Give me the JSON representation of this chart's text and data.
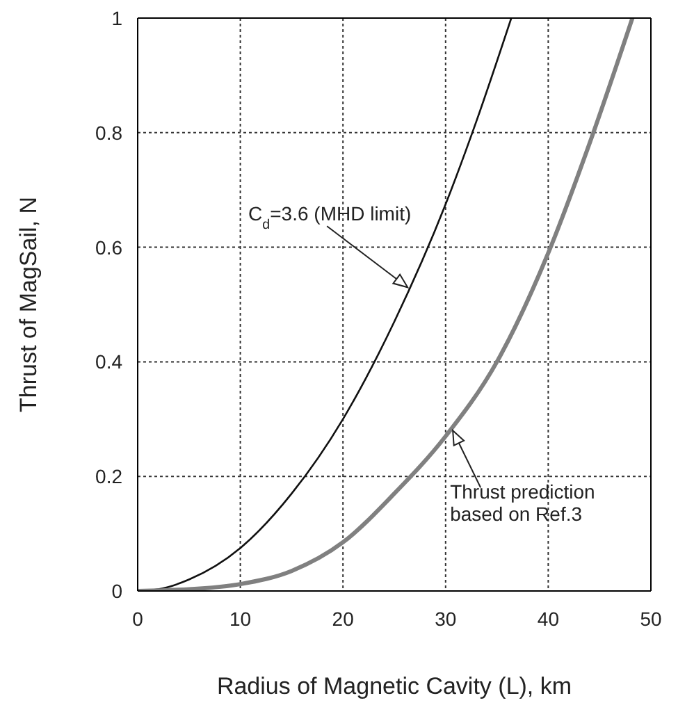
{
  "chart_data": {
    "type": "line",
    "xlabel": "Radius of Magnetic Cavity (L), km",
    "ylabel": "Thrust of MagSail, N",
    "series": [
      {
        "color": "#111111",
        "x": [
          0,
          2,
          5,
          10,
          15,
          20,
          25,
          30,
          33,
          36.4
        ],
        "values": [
          0,
          0.003,
          0.02,
          0.075,
          0.17,
          0.3,
          0.47,
          0.675,
          0.82,
          1
        ]
      },
      {
        "color": "#808080",
        "x": [
          0,
          2,
          5,
          10,
          15,
          20,
          25,
          30,
          35,
          40,
          44,
          48.2
        ],
        "values": [
          0,
          0.001,
          0.003,
          0.012,
          0.035,
          0.085,
          0.17,
          0.27,
          0.4,
          0.59,
          0.78,
          1
        ]
      }
    ],
    "xlim": [
      0,
      50
    ],
    "ylim": [
      0,
      1
    ],
    "xticks": [
      0,
      10,
      20,
      30,
      40,
      50
    ],
    "yticks": [
      0,
      0.2,
      0.4,
      0.6,
      0.8,
      1
    ],
    "grid": true,
    "marker": "none",
    "line_style": "solid",
    "annotations": [
      {
        "text": "C$_{d}$=3.6 (MHD limit)",
        "x": 26.3,
        "y": 0.53
      },
      {
        "text": "Thrust prediction\nbased on Ref.3",
        "x": 30.7,
        "y": 0.28
      }
    ]
  }
}
